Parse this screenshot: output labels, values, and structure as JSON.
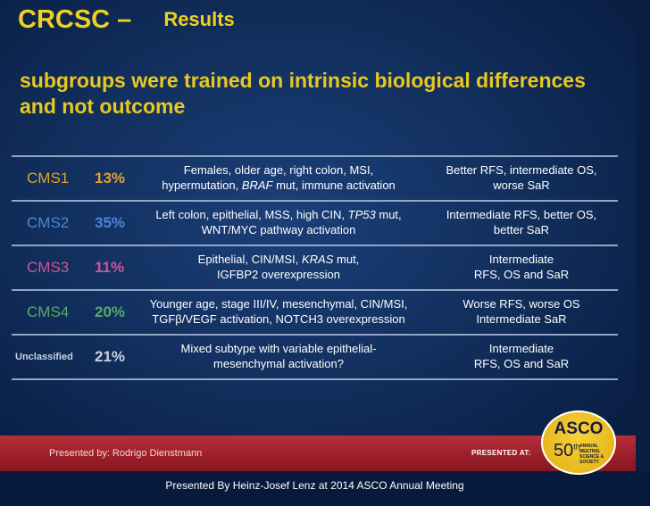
{
  "slide": {
    "title_main": "CRCSC –",
    "title_sub": "Results",
    "subtitle": "subgroups were trained on intrinsic biological differences and not outcome",
    "rows": [
      {
        "name": "CMS1",
        "percent": "13%",
        "color": "#e0a42a",
        "desc_line1": "Females, older age, right colon, MSI,",
        "desc_line2_pre": "hypermutation, ",
        "desc_line2_em": "BRAF",
        "desc_line2_post": " mut, immune activation",
        "outcome_line1": "Better RFS, intermediate OS,",
        "outcome_line2": "worse SaR"
      },
      {
        "name": "CMS2",
        "percent": "35%",
        "color": "#4e86d8",
        "desc_line1_pre": "Left colon, epithelial, MSS, high CIN, ",
        "desc_line1_em": "TP53",
        "desc_line1_post": " mut,",
        "desc_line2": "WNT/MYC pathway activation",
        "outcome_line1": "Intermediate RFS, better OS,",
        "outcome_line2": "better SaR"
      },
      {
        "name": "CMS3",
        "percent": "11%",
        "color": "#d0549a",
        "desc_line1_pre": "Epithelial, CIN/MSI, ",
        "desc_line1_em": "KRAS",
        "desc_line1_post": " mut,",
        "desc_line2": "IGFBP2 overexpression",
        "outcome_line1": "Intermediate",
        "outcome_line2": "RFS, OS and SaR"
      },
      {
        "name": "CMS4",
        "percent": "20%",
        "color": "#5aa86a",
        "desc_line1": "Younger age, stage III/IV, mesenchymal, CIN/MSI,",
        "desc_line2": "TGFβ/VEGF activation, NOTCH3 overexpression",
        "outcome_line1": "Worse RFS, worse OS",
        "outcome_line2": "Intermediate SaR"
      },
      {
        "name": "Unclassified",
        "percent": "21%",
        "color": "#c9d3e4",
        "desc_line1": "Mixed subtype with variable epithelial-",
        "desc_line2": "mesenchymal activation?",
        "outcome_line1": "Intermediate",
        "outcome_line2": "RFS, OS and SaR"
      }
    ]
  },
  "footer": {
    "presenter": "Presented by: Rodrigo Dienstmann",
    "presented_at": "PRESENTED AT:",
    "badge_org": "ASCO",
    "badge_number": "50",
    "badge_ordinal": "th",
    "badge_line1": "ANNUAL",
    "badge_line2": "MEETING",
    "badge_line3": "SCIENCE & SOCIETY"
  },
  "caption": "Presented By Heinz-Josef Lenz at 2014 ASCO Annual Meeting"
}
